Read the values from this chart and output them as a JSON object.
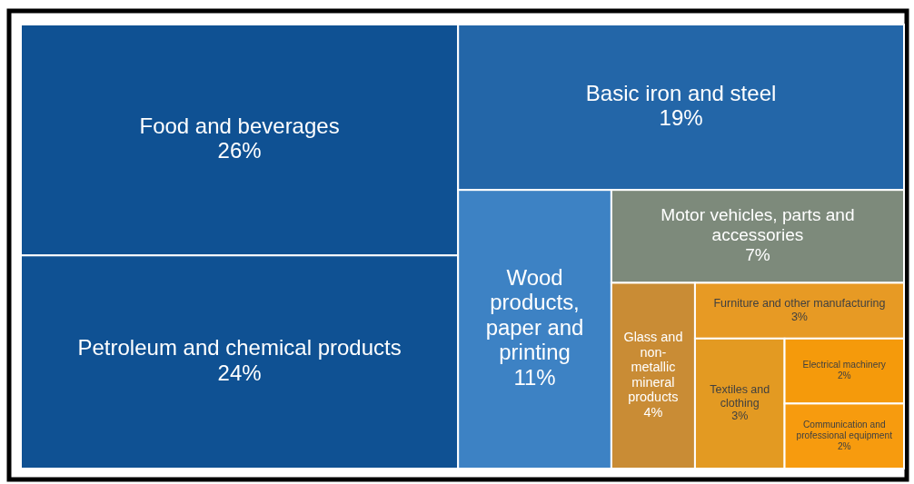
{
  "chart_data": {
    "type": "other",
    "categories": [
      "Food and beverages",
      "Petroleum and chemical products",
      "Basic iron and steel",
      "Wood products, paper and printing",
      "Motor vehicles, parts and accessories",
      "Glass and non-metallic mineral products",
      "Furniture and other manufacturing",
      "Textiles and clothing",
      "Electrical machinery",
      "Communication and professional equipment"
    ],
    "values": [
      26,
      24,
      19,
      11,
      7,
      4,
      3,
      3,
      2,
      2
    ],
    "value_labels": [
      "26%",
      "24%",
      "19%",
      "11%",
      "7%",
      "4%",
      "3%",
      "3%",
      "2%",
      "2%"
    ],
    "colors": [
      "#0f5193",
      "#0f5193",
      "#2366a8",
      "#3d82c4",
      "#7d8a7b",
      "#c98c35",
      "#e79a24",
      "#e39a22",
      "#f59a0b",
      "#f79b0e"
    ]
  }
}
